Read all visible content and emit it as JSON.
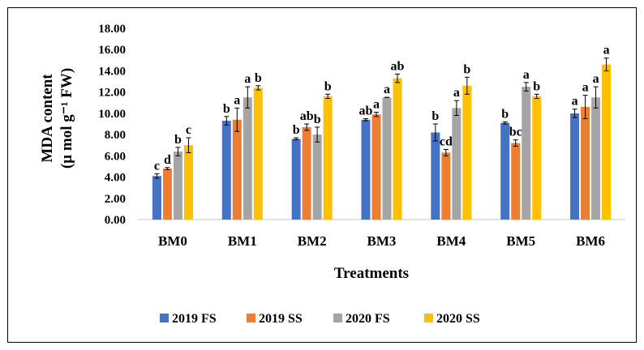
{
  "chart_data": {
    "type": "bar",
    "categories": [
      "BM0",
      "BM1",
      "BM2",
      "BM3",
      "BM4",
      "BM5",
      "BM6"
    ],
    "xlabel": "Treatments",
    "ylabel_line1": "MDA content",
    "ylabel_line2": "(µ mol g⁻¹ FW)",
    "ylim": [
      0,
      18
    ],
    "yticks": [
      "0.00",
      "2.00",
      "4.00",
      "6.00",
      "8.00",
      "10.00",
      "12.00",
      "14.00",
      "16.00",
      "18.00"
    ],
    "legend_position": "bottom",
    "grid": false,
    "series": [
      {
        "name": "2019 FS",
        "color": "#4472c4",
        "values": [
          4.1,
          9.3,
          7.6,
          9.4,
          8.2,
          9.1,
          10.0
        ],
        "errors": [
          0.2,
          0.4,
          0.1,
          0.1,
          0.8,
          0.1,
          0.4
        ],
        "letters": [
          "c",
          "b",
          "b",
          "ab",
          "b",
          "b",
          "a"
        ]
      },
      {
        "name": "2019 SS",
        "color": "#ed7d31",
        "values": [
          4.8,
          9.4,
          8.7,
          9.9,
          6.3,
          7.2,
          10.6
        ],
        "errors": [
          0.1,
          1.1,
          0.3,
          0.2,
          0.3,
          0.3,
          1.1
        ],
        "letters": [
          "d",
          "a",
          "ab",
          "a",
          "cd",
          "bc",
          "a"
        ]
      },
      {
        "name": "2020 FS",
        "color": "#a5a5a5",
        "values": [
          6.4,
          11.5,
          8.0,
          11.5,
          10.5,
          12.5,
          11.5
        ],
        "errors": [
          0.4,
          1.0,
          0.7,
          0.0,
          0.7,
          0.4,
          1.0
        ],
        "letters": [
          "b",
          "a",
          "b",
          "a",
          "a",
          "a",
          "a"
        ]
      },
      {
        "name": "2020 SS",
        "color": "#ffc000",
        "values": [
          7.0,
          12.4,
          11.6,
          13.3,
          12.6,
          11.6,
          14.6
        ],
        "errors": [
          0.7,
          0.2,
          0.2,
          0.4,
          0.8,
          0.2,
          0.6
        ],
        "letters": [
          "c",
          "b",
          "b",
          "ab",
          "b",
          "b",
          "a"
        ]
      }
    ]
  }
}
